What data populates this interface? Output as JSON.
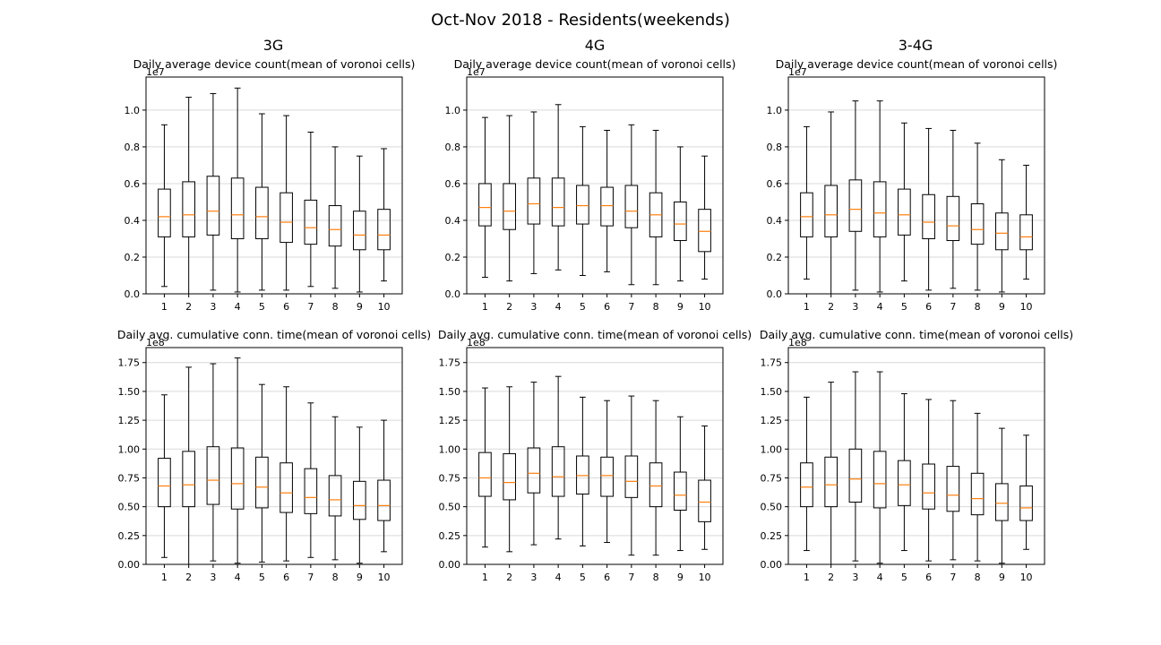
{
  "suptitle": "Oct-Nov 2018 - Residents(weekends)",
  "columns": [
    "3G",
    "4G",
    "3-4G"
  ],
  "row_titles": [
    "Daily average device count(mean of voronoi cells)",
    "Daily avg. cumulative conn. time(mean of voronoi cells)"
  ],
  "colors": {
    "box": "#000000",
    "median": "#ff7f0e",
    "grid": "#d9d9d9"
  },
  "chart_data": [
    {
      "type": "boxplot",
      "column": "3G",
      "title": "Daily average device count(mean of voronoi cells)",
      "categories": [
        "1",
        "2",
        "3",
        "4",
        "5",
        "6",
        "7",
        "8",
        "9",
        "10"
      ],
      "scale_label": "1e7",
      "ylim": [
        0,
        1.18
      ],
      "yticks": [
        "0.0",
        "0.2",
        "0.4",
        "0.6",
        "0.8",
        "1.0"
      ],
      "grid": "y",
      "boxes": [
        {
          "whislo": 0.04,
          "q1": 0.31,
          "med": 0.42,
          "q3": 0.57,
          "whishi": 0.92
        },
        {
          "whislo": 0.0,
          "q1": 0.31,
          "med": 0.43,
          "q3": 0.61,
          "whishi": 1.07
        },
        {
          "whislo": 0.02,
          "q1": 0.32,
          "med": 0.45,
          "q3": 0.64,
          "whishi": 1.09
        },
        {
          "whislo": 0.01,
          "q1": 0.3,
          "med": 0.43,
          "q3": 0.63,
          "whishi": 1.12
        },
        {
          "whislo": 0.02,
          "q1": 0.3,
          "med": 0.42,
          "q3": 0.58,
          "whishi": 0.98
        },
        {
          "whislo": 0.02,
          "q1": 0.28,
          "med": 0.39,
          "q3": 0.55,
          "whishi": 0.97
        },
        {
          "whislo": 0.04,
          "q1": 0.27,
          "med": 0.36,
          "q3": 0.51,
          "whishi": 0.88
        },
        {
          "whislo": 0.03,
          "q1": 0.26,
          "med": 0.35,
          "q3": 0.48,
          "whishi": 0.8
        },
        {
          "whislo": 0.01,
          "q1": 0.24,
          "med": 0.32,
          "q3": 0.45,
          "whishi": 0.75
        },
        {
          "whislo": 0.07,
          "q1": 0.24,
          "med": 0.32,
          "q3": 0.46,
          "whishi": 0.79
        }
      ]
    },
    {
      "type": "boxplot",
      "column": "4G",
      "title": "Daily average device count(mean of voronoi cells)",
      "categories": [
        "1",
        "2",
        "3",
        "4",
        "5",
        "6",
        "7",
        "8",
        "9",
        "10"
      ],
      "scale_label": "1e7",
      "ylim": [
        0,
        1.18
      ],
      "yticks": [
        "0.0",
        "0.2",
        "0.4",
        "0.6",
        "0.8",
        "1.0"
      ],
      "grid": "y",
      "boxes": [
        {
          "whislo": 0.09,
          "q1": 0.37,
          "med": 0.47,
          "q3": 0.6,
          "whishi": 0.96
        },
        {
          "whislo": 0.07,
          "q1": 0.35,
          "med": 0.45,
          "q3": 0.6,
          "whishi": 0.97
        },
        {
          "whislo": 0.11,
          "q1": 0.38,
          "med": 0.49,
          "q3": 0.63,
          "whishi": 0.99
        },
        {
          "whislo": 0.13,
          "q1": 0.37,
          "med": 0.47,
          "q3": 0.63,
          "whishi": 1.03
        },
        {
          "whislo": 0.1,
          "q1": 0.38,
          "med": 0.48,
          "q3": 0.59,
          "whishi": 0.91
        },
        {
          "whislo": 0.12,
          "q1": 0.37,
          "med": 0.48,
          "q3": 0.58,
          "whishi": 0.89
        },
        {
          "whislo": 0.05,
          "q1": 0.36,
          "med": 0.45,
          "q3": 0.59,
          "whishi": 0.92
        },
        {
          "whislo": 0.05,
          "q1": 0.31,
          "med": 0.43,
          "q3": 0.55,
          "whishi": 0.89
        },
        {
          "whislo": 0.07,
          "q1": 0.29,
          "med": 0.38,
          "q3": 0.5,
          "whishi": 0.8
        },
        {
          "whislo": 0.08,
          "q1": 0.23,
          "med": 0.34,
          "q3": 0.46,
          "whishi": 0.75
        }
      ]
    },
    {
      "type": "boxplot",
      "column": "3-4G",
      "title": "Daily average device count(mean of voronoi cells)",
      "categories": [
        "1",
        "2",
        "3",
        "4",
        "5",
        "6",
        "7",
        "8",
        "9",
        "10"
      ],
      "scale_label": "1e7",
      "ylim": [
        0,
        1.18
      ],
      "yticks": [
        "0.0",
        "0.2",
        "0.4",
        "0.6",
        "0.8",
        "1.0"
      ],
      "grid": "y",
      "boxes": [
        {
          "whislo": 0.08,
          "q1": 0.31,
          "med": 0.42,
          "q3": 0.55,
          "whishi": 0.91
        },
        {
          "whislo": 0.0,
          "q1": 0.31,
          "med": 0.43,
          "q3": 0.59,
          "whishi": 0.99
        },
        {
          "whislo": 0.02,
          "q1": 0.34,
          "med": 0.46,
          "q3": 0.62,
          "whishi": 1.05
        },
        {
          "whislo": 0.01,
          "q1": 0.31,
          "med": 0.44,
          "q3": 0.61,
          "whishi": 1.05
        },
        {
          "whislo": 0.07,
          "q1": 0.32,
          "med": 0.43,
          "q3": 0.57,
          "whishi": 0.93
        },
        {
          "whislo": 0.02,
          "q1": 0.3,
          "med": 0.39,
          "q3": 0.54,
          "whishi": 0.9
        },
        {
          "whislo": 0.03,
          "q1": 0.29,
          "med": 0.37,
          "q3": 0.53,
          "whishi": 0.89
        },
        {
          "whislo": 0.02,
          "q1": 0.27,
          "med": 0.35,
          "q3": 0.49,
          "whishi": 0.82
        },
        {
          "whislo": 0.01,
          "q1": 0.24,
          "med": 0.33,
          "q3": 0.44,
          "whishi": 0.73
        },
        {
          "whislo": 0.08,
          "q1": 0.24,
          "med": 0.31,
          "q3": 0.43,
          "whishi": 0.7
        }
      ]
    },
    {
      "type": "boxplot",
      "column": "3G",
      "title": "Daily avg. cumulative conn. time(mean of voronoi cells)",
      "categories": [
        "1",
        "2",
        "3",
        "4",
        "5",
        "6",
        "7",
        "8",
        "9",
        "10"
      ],
      "scale_label": "1e8",
      "ylim": [
        0,
        1.88
      ],
      "yticks": [
        "0.00",
        "0.25",
        "0.50",
        "0.75",
        "1.00",
        "1.25",
        "1.50",
        "1.75"
      ],
      "grid": "y",
      "boxes": [
        {
          "whislo": 0.06,
          "q1": 0.5,
          "med": 0.68,
          "q3": 0.92,
          "whishi": 1.47
        },
        {
          "whislo": 0.0,
          "q1": 0.5,
          "med": 0.69,
          "q3": 0.98,
          "whishi": 1.71
        },
        {
          "whislo": 0.03,
          "q1": 0.52,
          "med": 0.73,
          "q3": 1.02,
          "whishi": 1.74
        },
        {
          "whislo": 0.01,
          "q1": 0.48,
          "med": 0.7,
          "q3": 1.01,
          "whishi": 1.79
        },
        {
          "whislo": 0.02,
          "q1": 0.49,
          "med": 0.67,
          "q3": 0.93,
          "whishi": 1.56
        },
        {
          "whislo": 0.03,
          "q1": 0.45,
          "med": 0.62,
          "q3": 0.88,
          "whishi": 1.54
        },
        {
          "whislo": 0.06,
          "q1": 0.44,
          "med": 0.58,
          "q3": 0.83,
          "whishi": 1.4
        },
        {
          "whislo": 0.04,
          "q1": 0.42,
          "med": 0.56,
          "q3": 0.77,
          "whishi": 1.28
        },
        {
          "whislo": 0.01,
          "q1": 0.39,
          "med": 0.51,
          "q3": 0.72,
          "whishi": 1.19
        },
        {
          "whislo": 0.11,
          "q1": 0.38,
          "med": 0.51,
          "q3": 0.73,
          "whishi": 1.25
        }
      ]
    },
    {
      "type": "boxplot",
      "column": "4G",
      "title": "Daily avg. cumulative conn. time(mean of voronoi cells)",
      "categories": [
        "1",
        "2",
        "3",
        "4",
        "5",
        "6",
        "7",
        "8",
        "9",
        "10"
      ],
      "scale_label": "1e8",
      "ylim": [
        0,
        1.88
      ],
      "yticks": [
        "0.00",
        "0.25",
        "0.50",
        "0.75",
        "1.00",
        "1.25",
        "1.50",
        "1.75"
      ],
      "grid": "y",
      "boxes": [
        {
          "whislo": 0.15,
          "q1": 0.59,
          "med": 0.75,
          "q3": 0.97,
          "whishi": 1.53
        },
        {
          "whislo": 0.11,
          "q1": 0.56,
          "med": 0.71,
          "q3": 0.96,
          "whishi": 1.54
        },
        {
          "whislo": 0.17,
          "q1": 0.62,
          "med": 0.79,
          "q3": 1.01,
          "whishi": 1.58
        },
        {
          "whislo": 0.22,
          "q1": 0.59,
          "med": 0.76,
          "q3": 1.02,
          "whishi": 1.63
        },
        {
          "whislo": 0.16,
          "q1": 0.61,
          "med": 0.77,
          "q3": 0.94,
          "whishi": 1.45
        },
        {
          "whislo": 0.19,
          "q1": 0.59,
          "med": 0.77,
          "q3": 0.93,
          "whishi": 1.42
        },
        {
          "whislo": 0.08,
          "q1": 0.58,
          "med": 0.72,
          "q3": 0.94,
          "whishi": 1.46
        },
        {
          "whislo": 0.08,
          "q1": 0.5,
          "med": 0.68,
          "q3": 0.88,
          "whishi": 1.42
        },
        {
          "whislo": 0.12,
          "q1": 0.47,
          "med": 0.6,
          "q3": 0.8,
          "whishi": 1.28
        },
        {
          "whislo": 0.13,
          "q1": 0.37,
          "med": 0.54,
          "q3": 0.73,
          "whishi": 1.2
        }
      ]
    },
    {
      "type": "boxplot",
      "column": "3-4G",
      "title": "Daily avg. cumulative conn. time(mean of voronoi cells)",
      "categories": [
        "1",
        "2",
        "3",
        "4",
        "5",
        "6",
        "7",
        "8",
        "9",
        "10"
      ],
      "scale_label": "1e8",
      "ylim": [
        0,
        1.88
      ],
      "yticks": [
        "0.00",
        "0.25",
        "0.50",
        "0.75",
        "1.00",
        "1.25",
        "1.50",
        "1.75"
      ],
      "grid": "y",
      "boxes": [
        {
          "whislo": 0.12,
          "q1": 0.5,
          "med": 0.67,
          "q3": 0.88,
          "whishi": 1.45
        },
        {
          "whislo": 0.0,
          "q1": 0.5,
          "med": 0.69,
          "q3": 0.93,
          "whishi": 1.58
        },
        {
          "whislo": 0.03,
          "q1": 0.54,
          "med": 0.74,
          "q3": 1.0,
          "whishi": 1.67
        },
        {
          "whislo": 0.01,
          "q1": 0.49,
          "med": 0.7,
          "q3": 0.98,
          "whishi": 1.67
        },
        {
          "whislo": 0.12,
          "q1": 0.51,
          "med": 0.69,
          "q3": 0.9,
          "whishi": 1.48
        },
        {
          "whislo": 0.03,
          "q1": 0.48,
          "med": 0.62,
          "q3": 0.87,
          "whishi": 1.43
        },
        {
          "whislo": 0.04,
          "q1": 0.46,
          "med": 0.6,
          "q3": 0.85,
          "whishi": 1.42
        },
        {
          "whislo": 0.03,
          "q1": 0.43,
          "med": 0.57,
          "q3": 0.79,
          "whishi": 1.31
        },
        {
          "whislo": 0.01,
          "q1": 0.38,
          "med": 0.53,
          "q3": 0.7,
          "whishi": 1.18
        },
        {
          "whislo": 0.13,
          "q1": 0.38,
          "med": 0.49,
          "q3": 0.68,
          "whishi": 1.12
        }
      ]
    }
  ]
}
